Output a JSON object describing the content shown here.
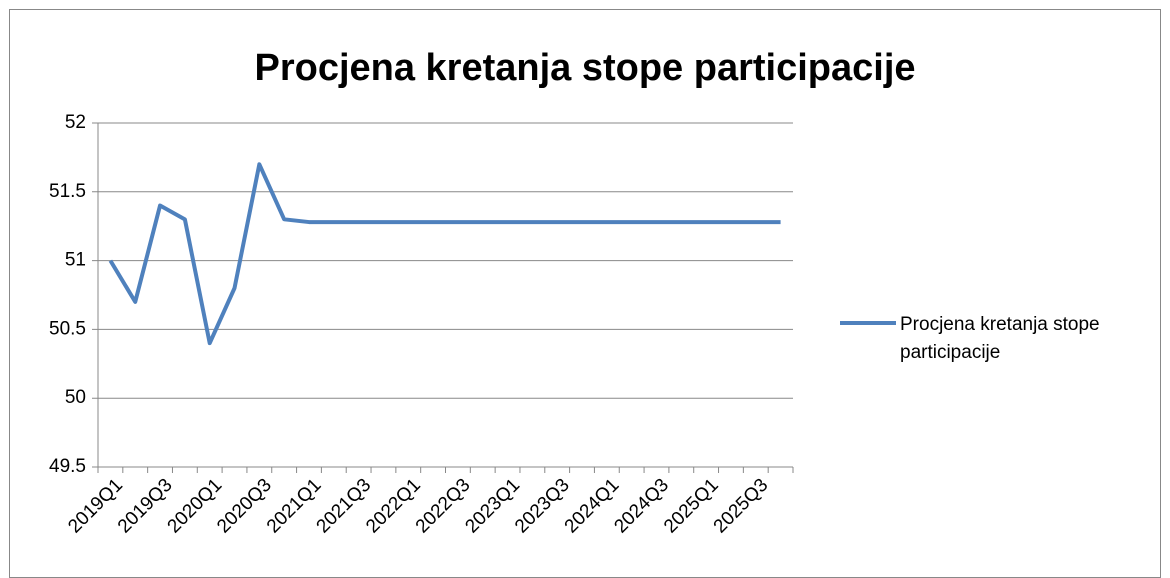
{
  "chart_data": {
    "type": "line",
    "title": "Procjena kretanja stope participacije",
    "categories": [
      "2019Q1",
      null,
      "2019Q3",
      null,
      "2020Q1",
      null,
      "2020Q3",
      null,
      "2021Q1",
      null,
      "2021Q3",
      null,
      "2022Q1",
      null,
      "2022Q3",
      null,
      "2023Q1",
      null,
      "2023Q3",
      null,
      "2024Q1",
      null,
      "2024Q3",
      null,
      "2025Q1",
      null,
      "2025Q3",
      null
    ],
    "series": [
      {
        "name": "Procjena kretanja stope participacije",
        "color": "#4f81bd",
        "values": [
          51.0,
          50.7,
          51.4,
          51.3,
          50.4,
          50.8,
          51.7,
          51.3,
          51.28,
          51.28,
          51.28,
          51.28,
          51.28,
          51.28,
          51.28,
          51.28,
          51.28,
          51.28,
          51.28,
          51.28,
          51.28,
          51.28,
          51.28,
          51.28,
          51.28,
          51.28,
          51.28,
          51.28
        ]
      }
    ],
    "ylim": [
      49.5,
      52
    ],
    "yticks": [
      49.5,
      50,
      50.5,
      51,
      51.5,
      52
    ],
    "grid": true,
    "legend": "right"
  }
}
